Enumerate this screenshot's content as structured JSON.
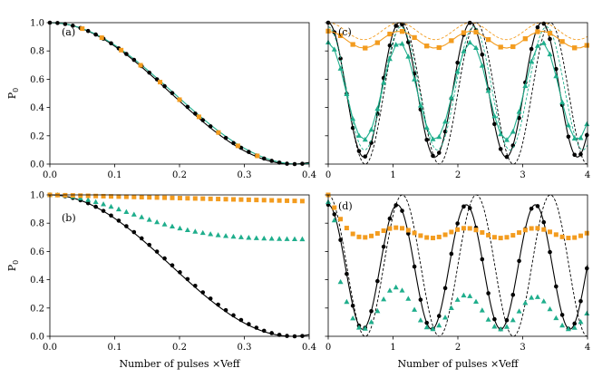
{
  "colors": {
    "black": "#000000",
    "orange": "#f39c1f",
    "green": "#1fae8c"
  },
  "chart_data": [
    {
      "panel": "(a)",
      "type": "line",
      "xlim": [
        0,
        0.4
      ],
      "ylim": [
        0,
        1.0
      ],
      "xticks": [
        "0.0",
        "0.1",
        "0.2",
        "0.3",
        "0.4"
      ],
      "yticks": [
        "0.0",
        "0.2",
        "0.4",
        "0.6",
        "0.8",
        "1.0"
      ],
      "ylabel": "P0",
      "xlabel": "",
      "series": [
        {
          "name": "black-solid",
          "style": "line",
          "color": "#000000",
          "fn": "cos2",
          "omega": 4.2
        },
        {
          "name": "green-solid",
          "style": "line",
          "color": "#1fae8c",
          "fn": "cos2",
          "omega": 4.1
        },
        {
          "name": "black-points",
          "style": "circle",
          "color": "#000000",
          "fn": "cos2",
          "omega": 4.15,
          "step": 0.0118
        },
        {
          "name": "orange-points",
          "style": "square",
          "color": "#f39c1f",
          "fn": "cos2",
          "omega": 4.15,
          "x": [
            0.05,
            0.08,
            0.11,
            0.14,
            0.17,
            0.2,
            0.23,
            0.26,
            0.29,
            0.32
          ]
        }
      ]
    },
    {
      "panel": "(b)",
      "type": "line",
      "xlim": [
        0,
        0.4
      ],
      "ylim": [
        0,
        1.0
      ],
      "xticks": [
        "0.0",
        "0.1",
        "0.2",
        "0.3",
        "0.4"
      ],
      "yticks": [
        "0.0",
        "0.2",
        "0.4",
        "0.6",
        "0.8",
        "1.0"
      ],
      "ylabel": "P0",
      "xlabel": "Number of pulses ×Veff",
      "series": [
        {
          "name": "black-solid",
          "style": "line",
          "color": "#000000",
          "fn": "cos2",
          "omega": 4.2
        },
        {
          "name": "black-points",
          "style": "circle",
          "color": "#000000",
          "fn": "cos2",
          "omega": 4.15,
          "step": 0.0118
        },
        {
          "name": "green-triangles",
          "style": "triangle",
          "color": "#1fae8c",
          "fn": "tri",
          "step": 0.0118
        },
        {
          "name": "orange-squares",
          "style": "square",
          "color": "#f39c1f",
          "fn": "sq",
          "step": 0.0118
        }
      ]
    },
    {
      "panel": "(c)",
      "type": "line",
      "xlim": [
        0,
        4
      ],
      "ylim": [
        0,
        1.0
      ],
      "xticks": [
        "0",
        "1",
        "2",
        "3",
        "4"
      ],
      "yticks": [
        "0.0",
        "0.2",
        "0.4",
        "0.6",
        "0.8",
        "1.0"
      ],
      "ylabel": "",
      "xlabel": "",
      "series": [
        {
          "name": "black-solid",
          "style": "line",
          "color": "#000000",
          "fn": "osc",
          "omega": 2.86,
          "lo": 0.05,
          "hi": 1.0
        },
        {
          "name": "black-dashed",
          "style": "dash",
          "color": "#000000",
          "fn": "osc",
          "omega": 2.75,
          "lo": 0.0,
          "hi": 1.0
        },
        {
          "name": "black-points",
          "style": "circle",
          "color": "#000000",
          "fn": "osc",
          "omega": 2.86,
          "lo": 0.05,
          "hi": 1.0,
          "step": 0.095
        },
        {
          "name": "green-solid",
          "style": "polyline",
          "color": "#1fae8c",
          "fn": "osc",
          "omega": 2.86,
          "lo": 0.17,
          "hi": 0.86,
          "step": 0.095
        },
        {
          "name": "green-dashed",
          "style": "dash",
          "color": "#1fae8c",
          "fn": "osc",
          "omega": 2.8,
          "lo": 0.1,
          "hi": 0.97
        },
        {
          "name": "green-points",
          "style": "triangle",
          "color": "#1fae8c",
          "fn": "osc",
          "omega": 2.86,
          "lo": 0.17,
          "hi": 0.86,
          "step": 0.095
        },
        {
          "name": "orange-solid",
          "style": "polyline",
          "color": "#f39c1f",
          "fn": "osc",
          "omega": 2.86,
          "lo": 0.82,
          "hi": 0.94,
          "step": 0.095
        },
        {
          "name": "orange-dashed",
          "style": "dash",
          "color": "#f39c1f",
          "fn": "osc",
          "omega": 2.86,
          "lo": 0.88,
          "hi": 1.0
        },
        {
          "name": "orange-points",
          "style": "square",
          "color": "#f39c1f",
          "fn": "osc",
          "omega": 2.86,
          "lo": 0.82,
          "hi": 0.94,
          "step": 0.19
        }
      ]
    },
    {
      "panel": "(d)",
      "type": "line",
      "xlim": [
        0,
        4
      ],
      "ylim": [
        0,
        1.0
      ],
      "xticks": [
        "0",
        "1",
        "2",
        "3",
        "4"
      ],
      "yticks": [
        "0.0",
        "0.2",
        "0.4",
        "0.6",
        "0.8",
        "1.0"
      ],
      "ylabel": "",
      "xlabel": "Number of pulses ×Veff",
      "series": [
        {
          "name": "black-solid",
          "style": "line",
          "color": "#000000",
          "fn": "osc",
          "omega": 2.95,
          "lo": 0.05,
          "hi": 0.93
        },
        {
          "name": "black-dashed",
          "style": "dash",
          "color": "#000000",
          "fn": "osc",
          "omega": 2.75,
          "lo": 0.0,
          "hi": 1.0
        },
        {
          "name": "black-points",
          "style": "circle",
          "color": "#000000",
          "fn": "osc",
          "omega": 2.95,
          "lo": 0.05,
          "hi": 0.93,
          "step": 0.095
        },
        {
          "name": "green-points",
          "style": "triangle",
          "color": "#1fae8c",
          "fn": "oscd",
          "omega": 2.95,
          "step": 0.095
        },
        {
          "name": "orange-points",
          "style": "square",
          "color": "#f39c1f",
          "fn": "oscq",
          "omega": 2.95,
          "step": 0.095
        }
      ]
    }
  ]
}
